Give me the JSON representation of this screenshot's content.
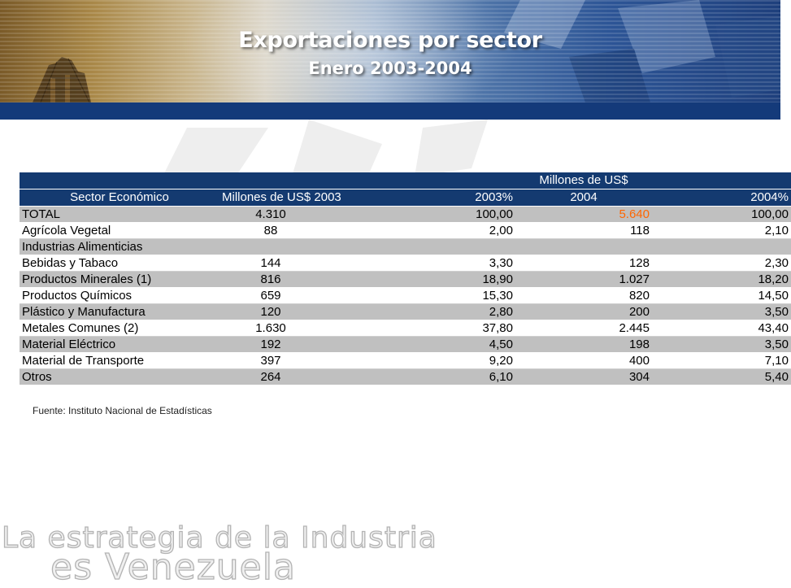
{
  "header": {
    "title": "Exportaciones por sector",
    "subtitle": "Enero 2003-2004"
  },
  "colors": {
    "header_band": "#143a7a",
    "table_header": "#143a70",
    "row_shade": "#c0c0c0",
    "highlight": "#ff6600"
  },
  "table": {
    "group_header": "Millones de US$",
    "columns": [
      "Sector Económico",
      "Millones de US$ 2003",
      "2003%",
      "2004",
      "2004%"
    ],
    "rows": [
      [
        "TOTAL",
        "4.310",
        "100,00",
        "5.640",
        "100,00"
      ],
      [
        "Agrícola Vegetal",
        "88",
        "2,00",
        "118",
        "2,10"
      ],
      [
        "Industrias Alimenticias",
        "",
        "",
        "",
        ""
      ],
      [
        "Bebidas y Tabaco",
        "144",
        "3,30",
        "128",
        "2,30"
      ],
      [
        "Productos Minerales (1)",
        "816",
        "18,90",
        "1.027",
        "18,20"
      ],
      [
        "Productos Químicos",
        "659",
        "15,30",
        "820",
        "14,50"
      ],
      [
        "Plástico y Manufactura",
        "120",
        "2,80",
        "200",
        "3,50"
      ],
      [
        "Metales Comunes (2)",
        "1.630",
        "37,80",
        "2.445",
        "43,40"
      ],
      [
        "Material Eléctrico",
        "192",
        "4,50",
        "198",
        "3,50"
      ],
      [
        "Material de Transporte",
        "397",
        "9,20",
        "400",
        "7,10"
      ],
      [
        "Otros",
        "264",
        "6,10",
        "304",
        "5,40"
      ]
    ]
  },
  "source": "Fuente: Instituto Nacional de Estadísticas",
  "tagline": {
    "line1": "La estrategia de la Industria",
    "line2": "es Venezuela"
  }
}
